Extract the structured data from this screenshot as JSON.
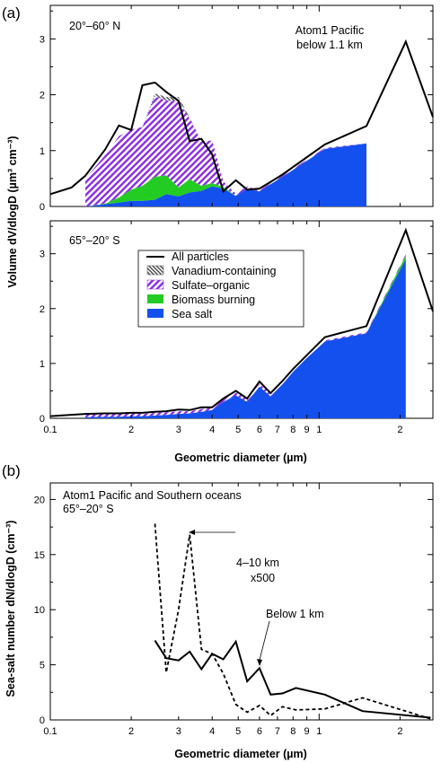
{
  "panel_labels": [
    "(a)",
    "(b)"
  ],
  "colors": {
    "all_particles": "#000000",
    "vanadium": "#555555",
    "sulfate_organic": "#8a2be2",
    "biomass_burning": "#22cc22",
    "sea_salt": "#1450ee"
  },
  "chart_data": [
    {
      "type": "area",
      "panel": "(a) top",
      "region_label": "20°–60° N",
      "annotation": [
        "Atom1 Pacific",
        "below 1.1 km"
      ],
      "ylabel": "Volume dV/dlogD (µm³ cm⁻³)",
      "xlabel": "",
      "xscale": "log",
      "xlim": [
        0.1,
        2.65
      ],
      "ylim": [
        0,
        3.6
      ],
      "yticks": [
        0,
        1,
        2,
        3
      ],
      "xticks": [
        "0.1",
        "2",
        "3",
        "4",
        "5",
        "6",
        "7",
        "8",
        "9",
        "1",
        "2"
      ],
      "stacked": true,
      "x": [
        0.135,
        0.16,
        0.18,
        0.2,
        0.22,
        0.245,
        0.27,
        0.3,
        0.33,
        0.365,
        0.4,
        0.44,
        0.49,
        0.54,
        0.6,
        0.66,
        0.73,
        1.05,
        1.5
      ],
      "series": [
        {
          "name": "Sea salt",
          "values": [
            0.0,
            0.04,
            0.07,
            0.1,
            0.1,
            0.12,
            0.22,
            0.18,
            0.25,
            0.28,
            0.36,
            0.32,
            0.19,
            0.32,
            0.27,
            0.4,
            0.53,
            1.03,
            1.13
          ]
        },
        {
          "name": "Biomass burning",
          "values": [
            0.0,
            0.01,
            0.09,
            0.2,
            0.27,
            0.41,
            0.34,
            0.16,
            0.24,
            0.09,
            0.06,
            0.03,
            0.0,
            0.0,
            0.0,
            0.0,
            0.0,
            0.0,
            0.0
          ]
        },
        {
          "name": "Sulfate–organic",
          "values": [
            0.5,
            0.87,
            1.1,
            1.08,
            1.05,
            1.44,
            1.34,
            1.54,
            1.08,
            0.8,
            0.76,
            0.1,
            0.04,
            0.04,
            0.02,
            0.02,
            0.02,
            0.02,
            0.0
          ]
        },
        {
          "name": "Vanadium-containing",
          "values": [
            0.0,
            0.0,
            0.0,
            0.0,
            0.0,
            0.05,
            0.06,
            0.08,
            0.02,
            0.0,
            0.0,
            0.0,
            0.0,
            0.0,
            0.0,
            0.0,
            0.0,
            0.0,
            0.0
          ]
        }
      ],
      "total": {
        "name": "All particles",
        "x": [
          0.1,
          0.12,
          0.135,
          0.16,
          0.18,
          0.2,
          0.22,
          0.245,
          0.27,
          0.3,
          0.33,
          0.365,
          0.4,
          0.44,
          0.49,
          0.54,
          0.6,
          0.66,
          0.73,
          1.05,
          1.5,
          2.1,
          2.65
        ],
        "values": [
          0.22,
          0.34,
          0.55,
          1.02,
          1.45,
          1.37,
          2.17,
          2.22,
          2.05,
          1.89,
          1.17,
          1.21,
          0.93,
          0.27,
          0.47,
          0.3,
          0.32,
          0.44,
          0.57,
          1.11,
          1.44,
          2.95,
          1.6
        ]
      }
    },
    {
      "type": "area",
      "panel": "(a) bottom",
      "region_label": "65°–20° S",
      "ylabel": "Volume dV/dlogD (µm³ cm⁻³)",
      "xlabel": "Geometric diameter (µm)",
      "xscale": "log",
      "xlim": [
        0.1,
        2.65
      ],
      "ylim": [
        0,
        3.6
      ],
      "yticks": [
        0,
        1,
        2,
        3
      ],
      "xticks": [
        "0.1",
        "2",
        "3",
        "4",
        "5",
        "6",
        "7",
        "8",
        "9",
        "1",
        "2"
      ],
      "legend": [
        "All particles",
        "Vanadium-containing",
        "Sulfate–organic",
        "Biomass burning",
        "Sea salt"
      ],
      "stacked": true,
      "x": [
        0.135,
        0.16,
        0.18,
        0.2,
        0.22,
        0.245,
        0.27,
        0.3,
        0.33,
        0.365,
        0.4,
        0.44,
        0.49,
        0.54,
        0.6,
        0.66,
        0.73,
        0.8,
        0.9,
        1.05,
        1.5,
        2.1
      ],
      "series": [
        {
          "name": "Sea salt",
          "values": [
            0.02,
            0.03,
            0.03,
            0.04,
            0.04,
            0.05,
            0.06,
            0.08,
            0.09,
            0.12,
            0.15,
            0.3,
            0.42,
            0.3,
            0.58,
            0.4,
            0.62,
            0.85,
            1.1,
            1.4,
            1.55,
            2.9
          ]
        },
        {
          "name": "Biomass burning",
          "values": [
            0.0,
            0.0,
            0.0,
            0.0,
            0.0,
            0.0,
            0.0,
            0.0,
            0.0,
            0.0,
            0.0,
            0.0,
            0.0,
            0.0,
            0.0,
            0.0,
            0.0,
            0.0,
            0.0,
            0.0,
            0.0,
            0.07
          ]
        },
        {
          "name": "Sulfate–organic",
          "values": [
            0.05,
            0.05,
            0.05,
            0.05,
            0.04,
            0.05,
            0.05,
            0.05,
            0.04,
            0.05,
            0.05,
            0.04,
            0.05,
            0.05,
            0.05,
            0.05,
            0.04,
            0.02,
            0.02,
            0.02,
            0.02,
            0.02
          ]
        },
        {
          "name": "Vanadium-containing",
          "values": [
            0.0,
            0.0,
            0.0,
            0.0,
            0.0,
            0.0,
            0.0,
            0.0,
            0.0,
            0.0,
            0.0,
            0.0,
            0.0,
            0.0,
            0.0,
            0.0,
            0.0,
            0.0,
            0.0,
            0.0,
            0.0,
            0.0
          ]
        }
      ],
      "total": {
        "name": "All particles",
        "x": [
          0.1,
          0.135,
          0.16,
          0.18,
          0.2,
          0.22,
          0.245,
          0.27,
          0.3,
          0.33,
          0.365,
          0.4,
          0.44,
          0.49,
          0.54,
          0.6,
          0.66,
          0.73,
          0.8,
          0.9,
          1.05,
          1.5,
          2.1,
          2.65
        ],
        "values": [
          0.04,
          0.08,
          0.09,
          0.09,
          0.1,
          0.1,
          0.12,
          0.13,
          0.16,
          0.15,
          0.2,
          0.2,
          0.36,
          0.5,
          0.36,
          0.67,
          0.46,
          0.68,
          0.9,
          1.15,
          1.48,
          1.68,
          3.43,
          1.95
        ]
      }
    },
    {
      "type": "line",
      "panel": "(b)",
      "annotation": [
        "Atom1 Pacific and Southern oceans",
        "65°–20° S"
      ],
      "ylabel": "Sea-salt number dN/dlogD (cm⁻³)",
      "xlabel": "Geometric diameter (µm)",
      "xscale": "log",
      "xlim": [
        0.1,
        2.65
      ],
      "ylim": [
        0,
        21.5
      ],
      "yticks": [
        0,
        5,
        10,
        15,
        20
      ],
      "xticks": [
        "0.1",
        "2",
        "3",
        "4",
        "5",
        "6",
        "7",
        "8",
        "9",
        "1",
        "2"
      ],
      "series": [
        {
          "name": "Below 1 km",
          "label": "Below 1 km",
          "style": "solid",
          "x": [
            0.245,
            0.27,
            0.3,
            0.33,
            0.365,
            0.4,
            0.44,
            0.49,
            0.54,
            0.6,
            0.66,
            0.73,
            0.82,
            1.05,
            1.45,
            2.6
          ],
          "y": [
            7.2,
            5.6,
            5.4,
            6.2,
            4.6,
            6.0,
            5.5,
            7.1,
            3.5,
            4.7,
            2.3,
            2.4,
            2.9,
            2.3,
            0.8,
            0.2
          ]
        },
        {
          "name": "4–10 km x500",
          "label": "4–10 km x500",
          "style": "dashed",
          "x": [
            0.245,
            0.27,
            0.3,
            0.33,
            0.365,
            0.4,
            0.44,
            0.49,
            0.54,
            0.6,
            0.66,
            0.73,
            0.82,
            1.05,
            1.45,
            2.6
          ],
          "y": [
            17.8,
            4.3,
            10.0,
            16.8,
            6.4,
            6.0,
            4.2,
            1.4,
            0.7,
            1.3,
            0.4,
            1.2,
            0.9,
            1.0,
            2.0,
            0.1
          ]
        }
      ],
      "labels": {
        "upper": [
          "4–10 km",
          "x500"
        ],
        "lower": "Below 1 km"
      }
    }
  ]
}
